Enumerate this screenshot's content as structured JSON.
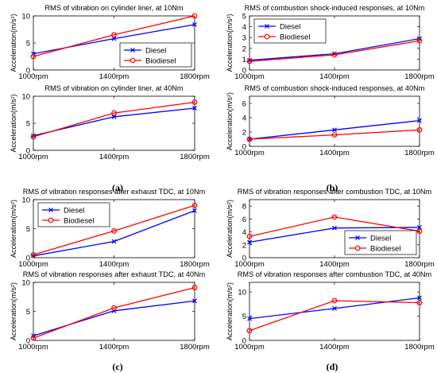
{
  "colors": {
    "diesel": "#0000ff",
    "biodiesel": "#ff0000",
    "axis": "#000000",
    "background": "#ffffff"
  },
  "chart_data": [
    {
      "type": "line",
      "title": "RMS of vibration on cylinder liner, at 10Nm",
      "ylabel": "Acceleration(m/s²)",
      "categories": [
        "1000rpm",
        "1400rpm",
        "1800rpm"
      ],
      "ylim": [
        0,
        10
      ],
      "yticks": [
        0,
        5,
        10
      ],
      "legend": "lower-right",
      "series": [
        {
          "name": "Diesel",
          "values": [
            3.0,
            5.8,
            8.4
          ]
        },
        {
          "name": "Biodiesel",
          "values": [
            2.5,
            6.5,
            10.0
          ]
        }
      ]
    },
    {
      "type": "line",
      "title": "RMS of vibration on cylinder liner, at 40Nm",
      "ylabel": "Acceleration(m/s²)",
      "categories": [
        "1000rpm",
        "1400rpm",
        "1800rpm"
      ],
      "ylim": [
        0,
        10
      ],
      "yticks": [
        0,
        5,
        10
      ],
      "legend": "none",
      "series": [
        {
          "name": "Diesel",
          "values": [
            2.7,
            6.2,
            7.8
          ]
        },
        {
          "name": "Biodiesel",
          "values": [
            2.5,
            6.9,
            8.9
          ]
        }
      ]
    },
    {
      "type": "line",
      "title": "RMS of combustion shock-induced responses, at 10Nm",
      "ylabel": "Acceleration(m/s²)",
      "categories": [
        "1000rpm",
        "1400rpm",
        "1800rpm"
      ],
      "ylim": [
        0,
        5
      ],
      "yticks": [
        0,
        1,
        2,
        3,
        4,
        5
      ],
      "legend": "top-left",
      "series": [
        {
          "name": "Diesel",
          "values": [
            0.9,
            1.5,
            2.9
          ]
        },
        {
          "name": "Biodiesel",
          "values": [
            0.8,
            1.4,
            2.7
          ]
        }
      ]
    },
    {
      "type": "line",
      "title": "RMS of combustion shock-induced responses, at 40Nm",
      "ylabel": "Acceleration(m/s²)",
      "categories": [
        "1000rpm",
        "1400rpm",
        "1800rpm"
      ],
      "ylim": [
        0,
        7
      ],
      "yticks": [
        0,
        2,
        4,
        6
      ],
      "legend": "none",
      "series": [
        {
          "name": "Diesel",
          "values": [
            1.0,
            2.3,
            3.6
          ]
        },
        {
          "name": "Biodiesel",
          "values": [
            1.0,
            1.6,
            2.3
          ]
        }
      ]
    },
    {
      "type": "line",
      "title": "RMS of vibration responses after exhaust TDC, at 10Nm",
      "ylabel": "Acceleration(m/s²)",
      "categories": [
        "1000rpm",
        "1400rpm",
        "1800rpm"
      ],
      "ylim": [
        0,
        10
      ],
      "yticks": [
        0,
        5,
        10
      ],
      "legend": "top-left",
      "series": [
        {
          "name": "Diesel",
          "values": [
            0.3,
            2.8,
            8.1
          ]
        },
        {
          "name": "Biodiesel",
          "values": [
            0.5,
            4.6,
            9.0
          ]
        }
      ]
    },
    {
      "type": "line",
      "title": "RMS of vibration responses after exhaust TDC, at 40Nm",
      "ylabel": "Acceleration(m/s²)",
      "categories": [
        "1000rpm",
        "1400rpm",
        "1800rpm"
      ],
      "ylim": [
        0,
        10
      ],
      "yticks": [
        0,
        5,
        10
      ],
      "legend": "none",
      "series": [
        {
          "name": "Diesel",
          "values": [
            0.8,
            5.1,
            6.8
          ]
        },
        {
          "name": "Biodiesel",
          "values": [
            0.4,
            5.6,
            9.1
          ]
        }
      ]
    },
    {
      "type": "line",
      "title": "RMS of vibration responses after combustion TDC, at 10Nm",
      "ylabel": "Acceleration(m/s²)",
      "categories": [
        "1000rpm",
        "1400rpm",
        "1800rpm"
      ],
      "ylim": [
        0,
        9
      ],
      "yticks": [
        0,
        2,
        4,
        6,
        8
      ],
      "legend": "lower-right",
      "series": [
        {
          "name": "Diesel",
          "values": [
            2.4,
            4.6,
            4.7
          ]
        },
        {
          "name": "Biodiesel",
          "values": [
            3.3,
            6.3,
            4.1
          ]
        }
      ]
    },
    {
      "type": "line",
      "title": "RMS of vibration responses after combustion TDC, at 40Nm",
      "ylabel": "Acceleration(m/s²)",
      "categories": [
        "1000rpm",
        "1400rpm",
        "1800rpm"
      ],
      "ylim": [
        0,
        12
      ],
      "yticks": [
        0,
        5,
        10
      ],
      "legend": "none",
      "series": [
        {
          "name": "Diesel",
          "values": [
            4.5,
            6.6,
            8.8
          ]
        },
        {
          "name": "Biodiesel",
          "values": [
            2.0,
            8.2,
            7.8
          ]
        }
      ]
    }
  ],
  "captions": [
    "(a)",
    "(b)",
    "(c)",
    "(d)"
  ]
}
